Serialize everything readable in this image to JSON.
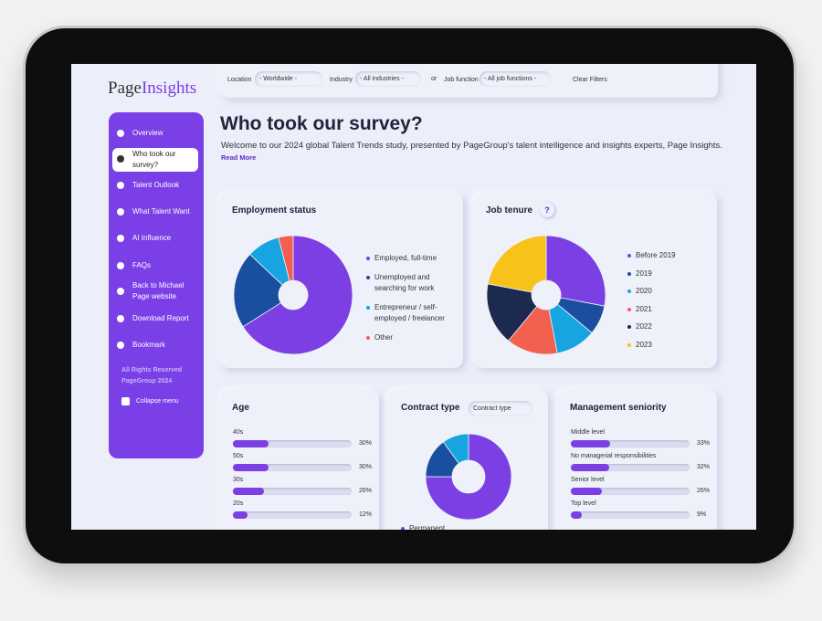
{
  "logo": {
    "page": "Page",
    "insights": "Insights"
  },
  "filters": {
    "location_label": "Location",
    "location_value": "- Worldwide -",
    "industry_label": "Industry",
    "industry_value": "- All industries -",
    "or": "or",
    "job_label": "Job function",
    "job_value": "- All job functions -",
    "clear": "Clear Filters"
  },
  "nav": [
    "Overview",
    "Who took our survey?",
    "Talent Outlook",
    "What Talent Want",
    "AI Influence",
    "FAQs",
    "Back to Michael Page website",
    "Download Report",
    "Bookmark"
  ],
  "footer": [
    "All Rights Reserved",
    "PageGroup 2024"
  ],
  "collapse": "Collapse menu",
  "header": {
    "title": "Who took our survey?",
    "intro": "Welcome to our 2024 global Talent Trends study, presented by PageGroup's talent intelligence and insights experts, Page Insights.",
    "read_more": "Read More"
  },
  "employment": {
    "type": "pie",
    "title": "Employment status",
    "series": [
      {
        "name": "Employed, full-time",
        "color": "#7b3fe4",
        "value": 66
      },
      {
        "name": "Unemployed and searching for work",
        "color": "#1a4fa0",
        "value": 21
      },
      {
        "name": "Entrepreneur / self-employed / freelancer",
        "color": "#16a5e0",
        "value": 9
      },
      {
        "name": "Other",
        "color": "#f2604f",
        "value": 4
      }
    ]
  },
  "tenure": {
    "type": "pie",
    "title": "Job tenure",
    "help": "?",
    "series": [
      {
        "name": "Before 2019",
        "color": "#7b3fe4",
        "value": 28
      },
      {
        "name": "2019",
        "color": "#1a4fa0",
        "value": 8
      },
      {
        "name": "2020",
        "color": "#16a5e0",
        "value": 11
      },
      {
        "name": "2021",
        "color": "#f2604f",
        "value": 14
      },
      {
        "name": "2022",
        "color": "#1c2a4f",
        "value": 17
      },
      {
        "name": "2023",
        "color": "#f7c21a",
        "value": 22
      }
    ]
  },
  "age": {
    "type": "bar",
    "title": "Age",
    "color": "#7b3fe4",
    "xlim": [
      0,
      100
    ],
    "categories": [
      "40s",
      "50s",
      "30s",
      "20s"
    ],
    "values": [
      30,
      30,
      26,
      12
    ],
    "value_labels": [
      "30%",
      "30%",
      "26%",
      "12%"
    ]
  },
  "contract": {
    "type": "pie",
    "title": "Contract type",
    "dropdown": "Contract type",
    "series": [
      {
        "name": "Permanent",
        "color": "#7b3fe4",
        "value": 75
      },
      {
        "name": null,
        "color": "#1a4fa0",
        "value": 15
      },
      {
        "name": null,
        "color": "#16a5e0",
        "value": 10
      }
    ]
  },
  "seniority": {
    "type": "bar",
    "title": "Management seniority",
    "color": "#7b3fe4",
    "xlim": [
      0,
      100
    ],
    "categories": [
      "Middle level",
      "No managerial responsibilities",
      "Senior level",
      "Top level"
    ],
    "values": [
      33,
      32,
      26,
      9
    ],
    "value_labels": [
      "33%",
      "32%",
      "26%",
      "9%"
    ]
  }
}
